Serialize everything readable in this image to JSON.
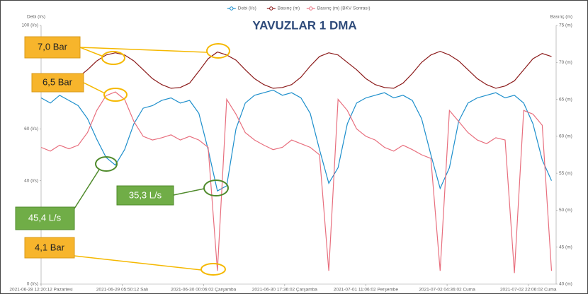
{
  "chart_data": {
    "type": "line",
    "title": "YAVUZLAR 1 DMA",
    "ylabel": "Debi (l/s)",
    "y2label": "Basınç (m)",
    "x": [
      0,
      2,
      4,
      6,
      8,
      10,
      12,
      14,
      16,
      18,
      20,
      22,
      24,
      26,
      28,
      30,
      32,
      34,
      36,
      38,
      40,
      42,
      44,
      46,
      48,
      50,
      52,
      54,
      56,
      58,
      60,
      62,
      64,
      66,
      68,
      70,
      72,
      74,
      76,
      78,
      80,
      82,
      84,
      86,
      88,
      90,
      92,
      94,
      96,
      98,
      100,
      102,
      104,
      106,
      108,
      110
    ],
    "xlim": [
      0,
      111
    ],
    "xticks": [
      {
        "value": 0,
        "label": "2021-06-28 12:20:12 Pazartesi"
      },
      {
        "value": 17.5,
        "label": "2021-06-29 05:50:12 Salı"
      },
      {
        "value": 35,
        "label": "2021-06-30 00:06:02 Çarşamba"
      },
      {
        "value": 52.5,
        "label": "2021-06-30 17:36:02 Çarşamba"
      },
      {
        "value": 70,
        "label": "2021-07-01 11:06:02 Perşembe"
      },
      {
        "value": 87.5,
        "label": "2021-07-02 04:36:02 Cuma"
      },
      {
        "value": 105,
        "label": "2021-07-02 22:06:02 Cuma"
      }
    ],
    "ylim": [
      0,
      100
    ],
    "yticks": [
      {
        "value": 100,
        "label": "100 (l/s)"
      },
      {
        "value": 60,
        "label": "60 (l/s)"
      },
      {
        "value": 40,
        "label": "40 (l/s)"
      },
      {
        "value": 0,
        "label": "0 (l/s)"
      }
    ],
    "y2lim": [
      40,
      75
    ],
    "y2ticks": [
      {
        "value": 75,
        "label": "75 (m)"
      },
      {
        "value": 70,
        "label": "70 (m)"
      },
      {
        "value": 65,
        "label": "65 (m)"
      },
      {
        "value": 60,
        "label": "60 (m)"
      },
      {
        "value": 55,
        "label": "55 (m)"
      },
      {
        "value": 50,
        "label": "50 (m)"
      },
      {
        "value": 45,
        "label": "45 (m)"
      },
      {
        "value": 40,
        "label": "40 (m)"
      }
    ],
    "series": [
      {
        "name": "Debi (l/s)",
        "color": "#1e8fcc",
        "values": [
          72,
          70,
          73,
          71,
          69,
          64,
          56,
          49,
          46,
          52,
          62,
          68,
          69,
          71,
          72,
          70,
          71,
          66,
          52,
          36,
          38,
          60,
          70,
          73,
          74,
          75,
          73,
          74,
          72,
          66,
          52,
          39,
          45,
          62,
          70,
          72,
          73,
          74,
          72,
          73,
          71,
          64,
          50,
          37,
          45,
          63,
          70,
          72,
          73,
          74,
          72,
          73,
          70,
          62,
          48,
          40
        ]
      },
      {
        "name": "Basınç (m)",
        "color": "#8b1a1a",
        "axis": "y2",
        "values": [
          67.2,
          67.0,
          67.4,
          67.1,
          68.0,
          69.0,
          70.2,
          71.0,
          71.3,
          71.0,
          70.2,
          69.0,
          67.8,
          67.0,
          66.5,
          66.6,
          67.2,
          68.8,
          70.5,
          71.4,
          71.0,
          70.3,
          69.0,
          67.8,
          67.0,
          66.5,
          66.6,
          67.0,
          68.0,
          69.5,
          70.8,
          71.3,
          71.0,
          70.0,
          69.0,
          67.8,
          67.0,
          66.6,
          66.5,
          67.2,
          68.5,
          70.0,
          71.0,
          71.5,
          71.0,
          70.2,
          69.0,
          67.8,
          67.0,
          66.5,
          66.8,
          67.5,
          69.0,
          70.5,
          71.2,
          70.8
        ]
      },
      {
        "name": "Basınç (m) (BKV Sonrası)",
        "color": "#e86f7e",
        "axis": "y2",
        "values": [
          58.5,
          58.0,
          58.8,
          58.3,
          58.8,
          60.5,
          63.5,
          65.5,
          66.0,
          65.0,
          62.0,
          60.0,
          59.5,
          59.8,
          60.2,
          59.5,
          60.0,
          59.5,
          58.5,
          41.8,
          65.0,
          63.0,
          60.5,
          59.5,
          58.8,
          58.2,
          58.5,
          59.5,
          59.0,
          58.5,
          57.5,
          41.8,
          65.0,
          63.5,
          61.0,
          60.0,
          59.5,
          58.5,
          58.0,
          58.8,
          58.2,
          57.5,
          57.0,
          41.8,
          63.5,
          62.0,
          60.5,
          59.5,
          59.0,
          59.8,
          59.5,
          41.5,
          63.5,
          63.0,
          61.5,
          41.8
        ]
      }
    ],
    "annotations": [
      "7,0 Bar",
      "6,5 Bar",
      "35,3 L/s",
      "45,4 L/s",
      "4,1 Bar"
    ]
  }
}
